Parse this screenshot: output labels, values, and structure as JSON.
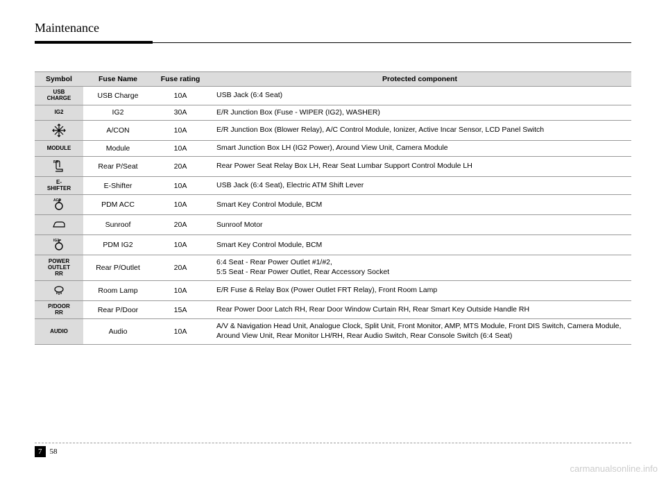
{
  "header": {
    "title": "Maintenance"
  },
  "table": {
    "headers": [
      "Symbol",
      "Fuse Name",
      "Fuse rating",
      "Protected component"
    ],
    "rows": [
      {
        "symbol_type": "text",
        "symbol": "USB\nCHARGE",
        "fname": "USB Charge",
        "frating": "10A",
        "prot": "USB Jack (6:4 Seat)"
      },
      {
        "symbol_type": "text",
        "symbol": "IG2",
        "fname": "IG2",
        "frating": "30A",
        "prot": "E/R Junction Box (Fuse - WIPER (IG2), WASHER)"
      },
      {
        "symbol_type": "icon",
        "icon": "snowflake",
        "fname": "A/CON",
        "frating": "10A",
        "prot": "E/R Junction Box (Blower Relay), A/C Control Module, Ionizer, Active Incar Sensor, LCD Panel Switch"
      },
      {
        "symbol_type": "text",
        "symbol": "MODULE",
        "fname": "Module",
        "frating": "10A",
        "prot": "Smart Junction Box LH (IG2 Power), Around View Unit, Camera Module"
      },
      {
        "symbol_type": "icon",
        "icon": "seat",
        "overlay": "RR",
        "fname": "Rear P/Seat",
        "frating": "20A",
        "prot": "Rear Power Seat Relay Box LH, Rear Seat Lumbar Support Control Module LH"
      },
      {
        "symbol_type": "text",
        "symbol": "E-\nSHIFTER",
        "fname": "E-Shifter",
        "frating": "10A",
        "prot": "USB Jack (6:4 Seat), Electric ATM Shift Lever"
      },
      {
        "symbol_type": "icon",
        "icon": "key-ring",
        "overlay": "ACC",
        "fname": "PDM ACC",
        "frating": "10A",
        "prot": "Smart Key Control Module, BCM"
      },
      {
        "symbol_type": "icon",
        "icon": "car-profile",
        "fname": "Sunroof",
        "frating": "20A",
        "prot": "Sunroof Motor"
      },
      {
        "symbol_type": "icon",
        "icon": "key-ring",
        "overlay": "IG2",
        "fname": "PDM IG2",
        "frating": "10A",
        "prot": "Smart Key Control Module, BCM"
      },
      {
        "symbol_type": "text",
        "symbol": "POWER\nOUTLET\nRR",
        "fname": "Rear P/Outlet",
        "frating": "20A",
        "prot": "6:4 Seat - Rear Power Outlet #1/#2,\n5:5 Seat - Rear Power Outlet, Rear Accessory Socket"
      },
      {
        "symbol_type": "icon",
        "icon": "lamp",
        "fname": "Room Lamp",
        "frating": "10A",
        "prot": "E/R Fuse & Relay Box (Power Outlet FRT Relay), Front Room Lamp"
      },
      {
        "symbol_type": "text",
        "symbol": "P/DOOR\nRR",
        "fname": "Rear P/Door",
        "frating": "15A",
        "prot": "Rear Power Door Latch RH, Rear Door Window Curtain RH, Rear Smart Key Outside Handle RH"
      },
      {
        "symbol_type": "text",
        "symbol": "AUDIO",
        "fname": "Audio",
        "frating": "10A",
        "prot": "A/V & Navigation Head Unit, Analogue Clock, Split Unit, Front Monitor, AMP, MTS Module, Front DIS Switch, Camera Module, Around View Unit, Rear Monitor LH/RH, Rear Audio Switch, Rear Console Switch (6:4 Seat)"
      }
    ]
  },
  "footer": {
    "chapter": "7",
    "page": "58"
  },
  "watermark": "carmanualsonline.info",
  "colors": {
    "header_bg": "#dcdcdc",
    "border": "#999999",
    "text": "#000000",
    "watermark": "#cccccc"
  }
}
